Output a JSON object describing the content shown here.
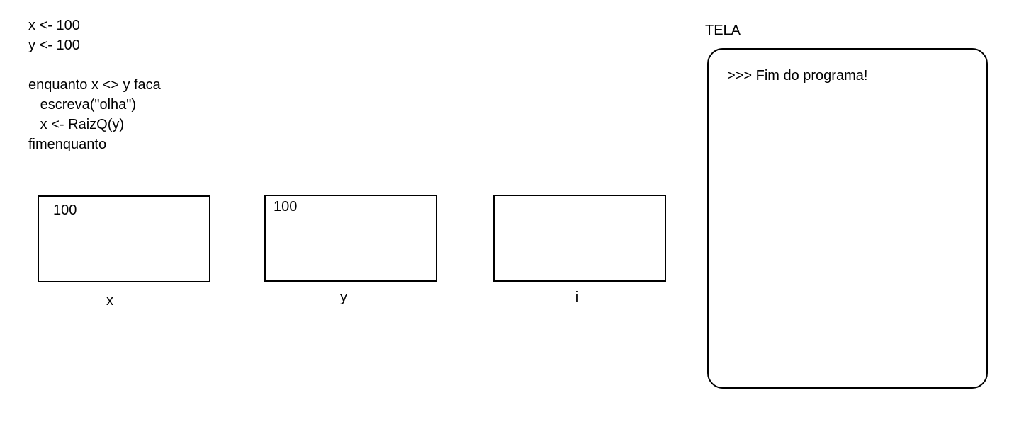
{
  "code": {
    "lines": [
      "x <- 100",
      "y <- 100",
      "",
      "enquanto x <> y faca",
      "   escreva(\"olha\")",
      "   x <- RaizQ(y)",
      "fimenquanto"
    ]
  },
  "variables": [
    {
      "name": "x",
      "value": "100"
    },
    {
      "name": "y",
      "value": "100"
    },
    {
      "name": "i",
      "value": ""
    }
  ],
  "screen": {
    "title": "TELA",
    "output_lines": [
      ">>> Fim do programa!"
    ]
  }
}
